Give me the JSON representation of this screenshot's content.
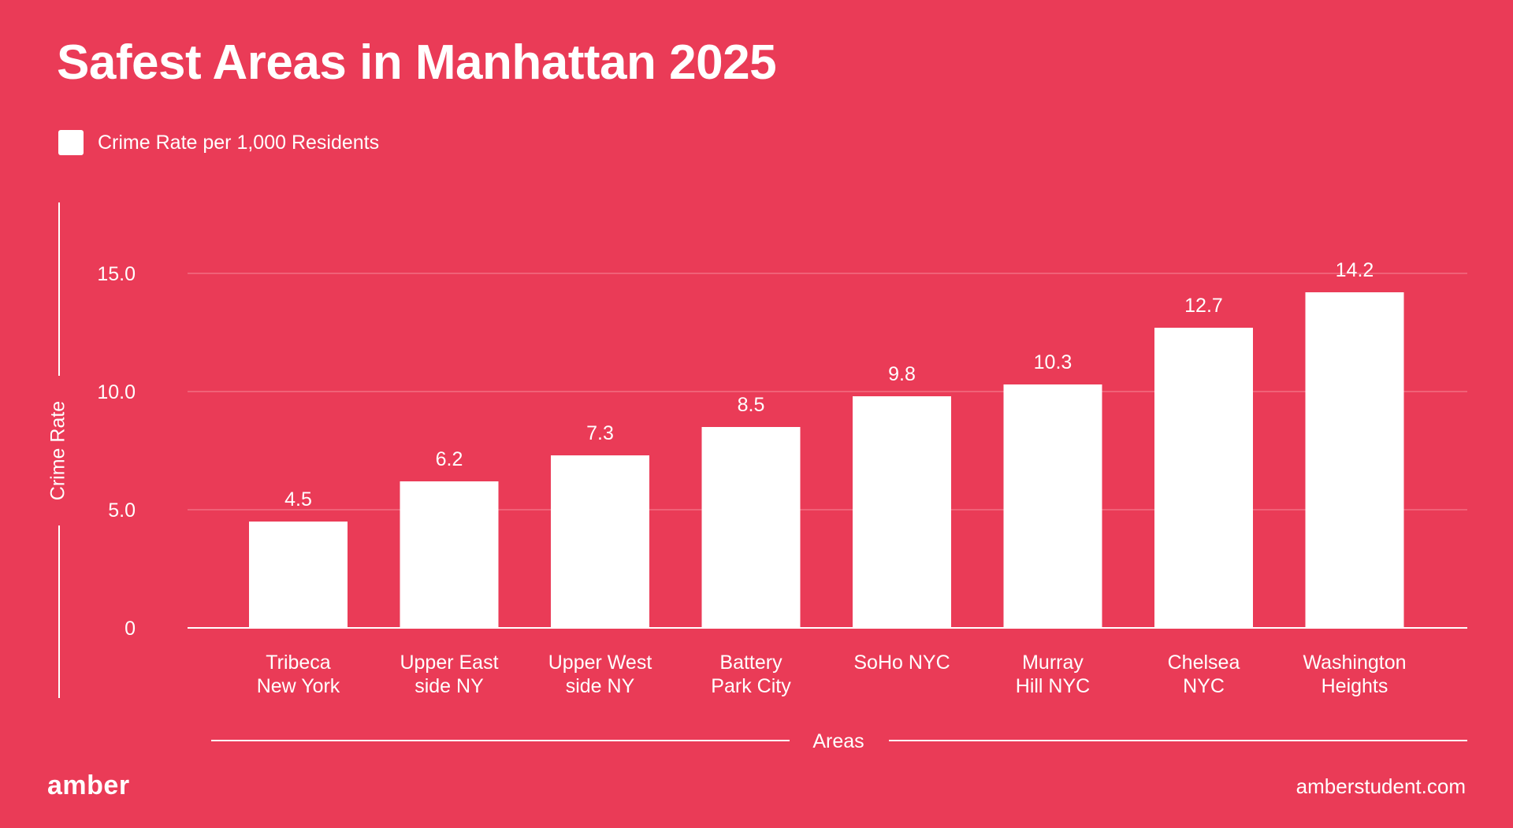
{
  "title": "Safest Areas in Manhattan 2025",
  "legend": {
    "label": "Crime Rate per 1,000 Residents",
    "color": "#ffffff"
  },
  "colors": {
    "background": "#EA3B57",
    "bar": "#ffffff",
    "grid": "#F26E82"
  },
  "footer": {
    "brand": "amber",
    "url": "amberstudent.com"
  },
  "chart_data": {
    "type": "bar",
    "title": "Safest Areas in Manhattan 2025",
    "xlabel": "Areas",
    "ylabel": "Crime Rate",
    "ylim": [
      0,
      15
    ],
    "yticks": [
      "0",
      "5.0",
      "10.0",
      "15.0"
    ],
    "grid": true,
    "legend_position": "top-left",
    "categories": [
      [
        "Tribeca",
        "New York"
      ],
      [
        "Upper East",
        "side NY"
      ],
      [
        "Upper West",
        "side NY"
      ],
      [
        "Battery",
        "Park City"
      ],
      [
        "SoHo NYC"
      ],
      [
        "Murray",
        "Hill NYC"
      ],
      [
        "Chelsea",
        "NYC"
      ],
      [
        "Washington",
        "Heights"
      ]
    ],
    "series": [
      {
        "name": "Crime Rate per 1,000 Residents",
        "values": [
          4.5,
          6.2,
          7.3,
          8.5,
          9.8,
          10.3,
          12.7,
          14.2
        ],
        "labels": [
          "4.5",
          "6.2",
          "7.3",
          "8.5",
          "9.8",
          "10.3",
          "12.7",
          "14.2"
        ]
      }
    ]
  }
}
